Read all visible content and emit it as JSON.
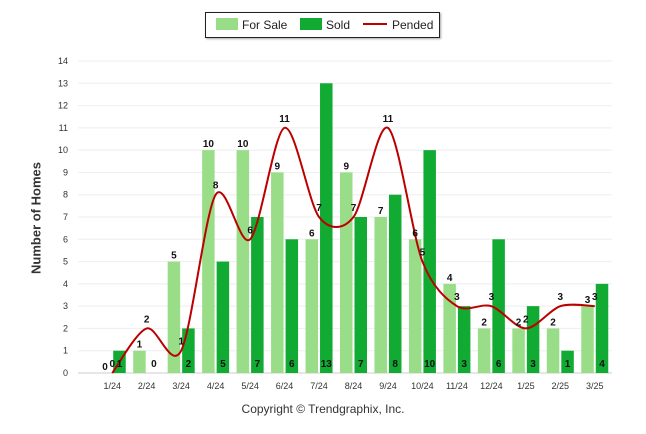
{
  "legend": {
    "items": [
      {
        "label": "For Sale",
        "color": "#99dd88"
      },
      {
        "label": "Sold",
        "color": "#11aa33"
      },
      {
        "label": "Pended",
        "color": "#bb0000"
      }
    ]
  },
  "ylabel": "Number of Homes",
  "copyright": "Copyright © Trendgraphix, Inc.",
  "chart_data": {
    "type": "bar",
    "categories": [
      "1/24",
      "2/24",
      "3/24",
      "4/24",
      "5/24",
      "6/24",
      "7/24",
      "8/24",
      "9/24",
      "10/24",
      "11/24",
      "12/24",
      "1/25",
      "2/25",
      "3/25"
    ],
    "series": [
      {
        "name": "For Sale",
        "type": "bar",
        "color": "#99dd88",
        "values": [
          0,
          1,
          5,
          10,
          10,
          9,
          6,
          9,
          7,
          6,
          4,
          2,
          2,
          2,
          3
        ]
      },
      {
        "name": "Sold",
        "type": "bar",
        "color": "#11aa33",
        "values": [
          1,
          0,
          2,
          5,
          7,
          6,
          13,
          7,
          8,
          10,
          3,
          6,
          3,
          1,
          4
        ]
      },
      {
        "name": "Pended",
        "type": "line",
        "color": "#bb0000",
        "values": [
          0,
          2,
          1,
          8,
          6,
          11,
          7,
          7,
          11,
          5,
          3,
          3,
          2,
          3,
          3
        ]
      }
    ],
    "ylabel": "Number of Homes",
    "ylim": [
      0,
      14
    ],
    "yticks": [
      0,
      1,
      2,
      3,
      4,
      5,
      6,
      7,
      8,
      9,
      10,
      11,
      12,
      13,
      14
    ],
    "grid": true,
    "legend_position": "top-center"
  }
}
